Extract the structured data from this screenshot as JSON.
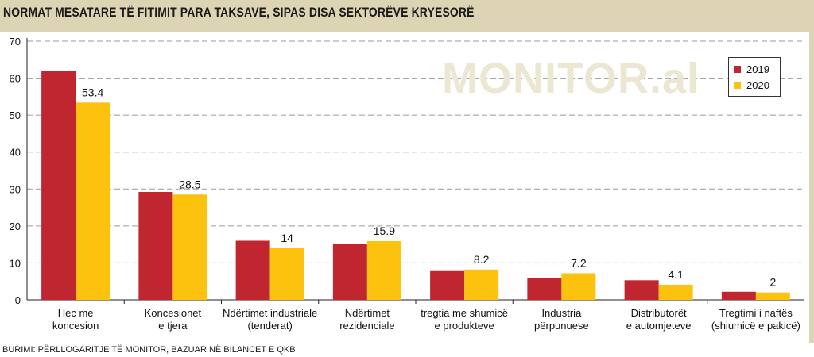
{
  "title": "NORMAT MESATARE TË FITIMIT PARA TAKSAVE, SIPAS DISA SEKTORËVE KRYESORË",
  "source": "BURIMI: PËRLLOGARITJE TË MONITOR, BAZUAR NË BILANCET E QKB",
  "watermark": "MONITOR.al",
  "colors": {
    "frame": "#ddd4b4",
    "series_2019": "#bf2630",
    "series_2020": "#fcc20e",
    "grid": "#9a9a9a"
  },
  "legend": {
    "items": [
      "2019",
      "2020"
    ],
    "position": "top-right"
  },
  "chart_data": {
    "type": "bar",
    "title": "NORMAT MESATARE TË FITIMIT PARA TAKSAVE, SIPAS DISA SEKTORËVE KRYESORË",
    "categories": [
      [
        "Hec me",
        "koncesion"
      ],
      [
        "Koncesionet",
        "e tjera"
      ],
      [
        "Ndërtimet industriale",
        "(tenderat)"
      ],
      [
        "Ndërtimet",
        "rezidenciale"
      ],
      [
        "tregtia me shumicë",
        "e produkteve"
      ],
      [
        "Industria",
        "përpunuese"
      ],
      [
        "Distributorët",
        "e automjeteve"
      ],
      [
        "Tregtimi i naftës",
        "(shiumicë e pakicë)"
      ]
    ],
    "series": [
      {
        "name": "2019",
        "values": [
          62,
          29.2,
          16,
          15.1,
          8,
          5.8,
          5.3,
          2.2
        ]
      },
      {
        "name": "2020",
        "values": [
          53.4,
          28.5,
          14,
          15.9,
          8.2,
          7.2,
          4.1,
          2
        ]
      }
    ],
    "data_labels_2020": [
      "53.4",
      "28.5",
      "14",
      "15.9",
      "8.2",
      "7.2",
      "4.1",
      "2"
    ],
    "yticks": [
      0,
      10,
      20,
      30,
      40,
      50,
      60,
      70
    ],
    "ylim": [
      0,
      70
    ],
    "grid": true,
    "legend_placement": "top-right"
  }
}
